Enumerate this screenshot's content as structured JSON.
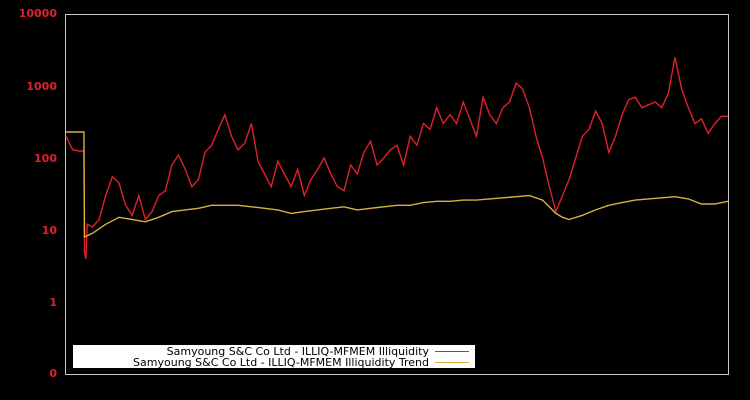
{
  "chart_data": {
    "type": "line",
    "title": "",
    "xlabel": "",
    "ylabel": "",
    "yscale": "log",
    "ylim": [
      0.1,
      10000
    ],
    "y_tick_labels": [
      "10000",
      "1000",
      "100",
      "10",
      "1",
      "0"
    ],
    "y_tick_values": [
      10000,
      1000,
      100,
      10,
      1,
      0.1
    ],
    "grid": false,
    "legend_position": "lower-left",
    "x_index": "time (unlabeled), 0-100% of plot width",
    "series": [
      {
        "name": "Samyoung S&C Co Ltd - ILLIQ-MFMEM Illiquidity",
        "color": "#e0202a",
        "points": [
          [
            0,
            200
          ],
          [
            1,
            130
          ],
          [
            2,
            125
          ],
          [
            2.7,
            125
          ],
          [
            2.8,
            5
          ],
          [
            3,
            4
          ],
          [
            3.2,
            12
          ],
          [
            4,
            11
          ],
          [
            5,
            14
          ],
          [
            6,
            30
          ],
          [
            7,
            55
          ],
          [
            8,
            45
          ],
          [
            9,
            22
          ],
          [
            10,
            16
          ],
          [
            11,
            30
          ],
          [
            12,
            14
          ],
          [
            13,
            18
          ],
          [
            14,
            30
          ],
          [
            15,
            35
          ],
          [
            16,
            80
          ],
          [
            17,
            110
          ],
          [
            18,
            70
          ],
          [
            19,
            40
          ],
          [
            20,
            50
          ],
          [
            21,
            120
          ],
          [
            22,
            150
          ],
          [
            23,
            250
          ],
          [
            24,
            400
          ],
          [
            25,
            200
          ],
          [
            26,
            130
          ],
          [
            27,
            160
          ],
          [
            28,
            300
          ],
          [
            29,
            90
          ],
          [
            30,
            60
          ],
          [
            31,
            40
          ],
          [
            32,
            90
          ],
          [
            33,
            60
          ],
          [
            34,
            40
          ],
          [
            35,
            70
          ],
          [
            36,
            30
          ],
          [
            37,
            50
          ],
          [
            38,
            70
          ],
          [
            39,
            100
          ],
          [
            40,
            60
          ],
          [
            41,
            40
          ],
          [
            42,
            35
          ],
          [
            43,
            80
          ],
          [
            44,
            60
          ],
          [
            45,
            120
          ],
          [
            46,
            170
          ],
          [
            47,
            80
          ],
          [
            48,
            100
          ],
          [
            49,
            130
          ],
          [
            50,
            150
          ],
          [
            51,
            80
          ],
          [
            52,
            200
          ],
          [
            53,
            150
          ],
          [
            54,
            300
          ],
          [
            55,
            250
          ],
          [
            56,
            500
          ],
          [
            57,
            300
          ],
          [
            58,
            400
          ],
          [
            59,
            300
          ],
          [
            60,
            600
          ],
          [
            61,
            350
          ],
          [
            62,
            200
          ],
          [
            63,
            700
          ],
          [
            64,
            400
          ],
          [
            65,
            300
          ],
          [
            66,
            500
          ],
          [
            67,
            600
          ],
          [
            68,
            1100
          ],
          [
            69,
            900
          ],
          [
            70,
            500
          ],
          [
            71,
            200
          ],
          [
            72,
            100
          ],
          [
            73,
            40
          ],
          [
            74,
            18
          ],
          [
            75,
            30
          ],
          [
            76,
            50
          ],
          [
            77,
            100
          ],
          [
            78,
            200
          ],
          [
            79,
            250
          ],
          [
            80,
            450
          ],
          [
            81,
            300
          ],
          [
            82,
            120
          ],
          [
            83,
            200
          ],
          [
            84,
            400
          ],
          [
            85,
            650
          ],
          [
            86,
            700
          ],
          [
            87,
            500
          ],
          [
            88,
            550
          ],
          [
            89,
            600
          ],
          [
            90,
            500
          ],
          [
            91,
            800
          ],
          [
            92,
            2500
          ],
          [
            93,
            900
          ],
          [
            94,
            500
          ],
          [
            95,
            300
          ],
          [
            96,
            350
          ],
          [
            97,
            220
          ],
          [
            98,
            300
          ],
          [
            99,
            380
          ],
          [
            100,
            380
          ]
        ]
      },
      {
        "name": "Samyoung S&C Co Ltd - ILLIQ-MFMEM Illiquidity Trend",
        "color": "#d8b040",
        "points": [
          [
            0,
            230
          ],
          [
            2.7,
            230
          ],
          [
            2.8,
            8
          ],
          [
            4,
            9
          ],
          [
            6,
            12
          ],
          [
            8,
            15
          ],
          [
            10,
            14
          ],
          [
            12,
            13
          ],
          [
            14,
            15
          ],
          [
            16,
            18
          ],
          [
            18,
            19
          ],
          [
            20,
            20
          ],
          [
            22,
            22
          ],
          [
            24,
            22
          ],
          [
            26,
            22
          ],
          [
            28,
            21
          ],
          [
            30,
            20
          ],
          [
            32,
            19
          ],
          [
            34,
            17
          ],
          [
            36,
            18
          ],
          [
            38,
            19
          ],
          [
            40,
            20
          ],
          [
            42,
            21
          ],
          [
            44,
            19
          ],
          [
            46,
            20
          ],
          [
            48,
            21
          ],
          [
            50,
            22
          ],
          [
            52,
            22
          ],
          [
            54,
            24
          ],
          [
            56,
            25
          ],
          [
            58,
            25
          ],
          [
            60,
            26
          ],
          [
            62,
            26
          ],
          [
            64,
            27
          ],
          [
            66,
            28
          ],
          [
            68,
            29
          ],
          [
            70,
            30
          ],
          [
            72,
            26
          ],
          [
            74,
            17
          ],
          [
            75,
            15
          ],
          [
            76,
            14
          ],
          [
            78,
            16
          ],
          [
            80,
            19
          ],
          [
            82,
            22
          ],
          [
            84,
            24
          ],
          [
            86,
            26
          ],
          [
            88,
            27
          ],
          [
            90,
            28
          ],
          [
            92,
            29
          ],
          [
            94,
            27
          ],
          [
            96,
            23
          ],
          [
            98,
            23
          ],
          [
            100,
            25
          ]
        ]
      }
    ]
  },
  "legend": {
    "items": [
      {
        "label": "Samyoung S&C Co Ltd - ILLIQ-MFMEM Illiquidity",
        "color": "#e0202a"
      },
      {
        "label": "Samyoung S&C Co Ltd - ILLIQ-MFMEM Illiquidity Trend",
        "color": "#d8b040"
      }
    ]
  },
  "axis": {
    "tick_color": "#e0202a",
    "frame_color": "#c8c8c8"
  }
}
